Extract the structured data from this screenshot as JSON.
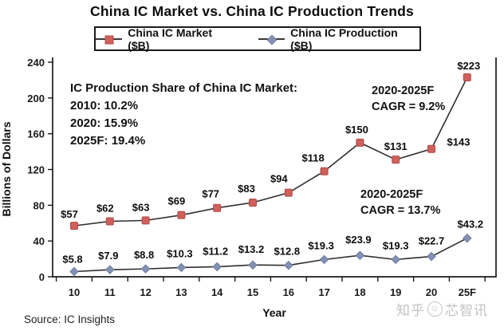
{
  "title": "China IC Market vs. China IC Production Trends",
  "chart_data": {
    "type": "line",
    "title": "China IC Market vs. China IC Production Trends",
    "x": [
      "10",
      "11",
      "12",
      "13",
      "14",
      "15",
      "16",
      "17",
      "18",
      "19",
      "20",
      "25F"
    ],
    "xlabel": "Year",
    "ylabel": "Billions of Dollars",
    "ylim": [
      0,
      240
    ],
    "yticks": [
      0,
      40,
      80,
      120,
      160,
      200,
      240
    ],
    "grid": false,
    "legend_position": "top",
    "series": [
      {
        "name": "China IC Market ($B)",
        "marker": "square",
        "marker_color": "#d0605c",
        "marker_edge": "#b04a46",
        "line_color": "#2e2e2e",
        "values": [
          57,
          62,
          63,
          69,
          77,
          83,
          94,
          118,
          150,
          131,
          143,
          223
        ],
        "labels": [
          "$57",
          "$62",
          "$63",
          "$69",
          "$77",
          "$83",
          "$94",
          "$118",
          "$150",
          "$131",
          "$143",
          "$223"
        ],
        "label_offsets": [
          [
            -6,
            -10
          ],
          [
            -6,
            -12
          ],
          [
            -6,
            -12
          ],
          [
            -6,
            -13
          ],
          [
            -8,
            -13
          ],
          [
            -8,
            -13
          ],
          [
            -12,
            -13
          ],
          [
            -14,
            -12
          ],
          [
            -4,
            -12
          ],
          [
            0,
            -12
          ],
          [
            34,
            -4
          ],
          [
            2,
            -10
          ]
        ]
      },
      {
        "name": "China IC Production ($B)",
        "marker": "diamond",
        "marker_color": "#8292b4",
        "marker_edge": "#6c7c9e",
        "line_color": "#2e2e2e",
        "values": [
          5.8,
          7.9,
          8.8,
          10.3,
          11.2,
          13.2,
          12.8,
          19.3,
          23.9,
          19.3,
          22.7,
          43.2
        ],
        "labels": [
          "$5.8",
          "$7.9",
          "$8.8",
          "$10.3",
          "$11.2",
          "$13.2",
          "$12.8",
          "$19.3",
          "$23.9",
          "$19.3",
          "$22.7",
          "$43.2"
        ],
        "label_offsets": [
          [
            -2,
            -11
          ],
          [
            -2,
            -13
          ],
          [
            -2,
            -13
          ],
          [
            -2,
            -13
          ],
          [
            -2,
            -15
          ],
          [
            -2,
            -15
          ],
          [
            -2,
            -13
          ],
          [
            -4,
            -13
          ],
          [
            -2,
            -15
          ],
          [
            0,
            -13
          ],
          [
            0,
            -15
          ],
          [
            4,
            -13
          ]
        ]
      }
    ],
    "annotations": {
      "share": {
        "heading": "IC Production Share of China IC Market:",
        "lines": [
          "2010: 10.2%",
          "2020: 15.9%",
          "2025F: 19.4%"
        ]
      },
      "cagr_market": {
        "line1": "2020-2025F",
        "line2": "CAGR = 9.2%"
      },
      "cagr_production": {
        "line1": "2020-2025F",
        "line2": "CAGR = 13.7%"
      }
    }
  },
  "source": "Source: IC Insights",
  "watermark": {
    "prefix": "知乎",
    "suffix": "芯智讯"
  }
}
